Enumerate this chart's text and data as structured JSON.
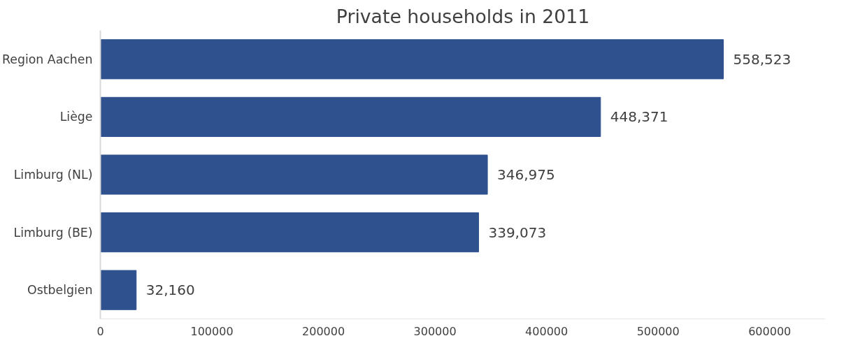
{
  "chart_data": {
    "type": "bar",
    "orientation": "horizontal",
    "title": "Private households in 2011",
    "categories": [
      "Region Aachen",
      "Liège",
      "Limburg (NL)",
      "Limburg (BE)",
      "Ostbelgien"
    ],
    "values": [
      558523,
      448371,
      346975,
      339073,
      32160
    ],
    "value_labels": [
      "558,523",
      "448,371",
      "346,975",
      "339,073",
      "32,160"
    ],
    "color": "#2f528f",
    "grid": false,
    "xlim": [
      0,
      650000
    ],
    "xticks": [
      0,
      100000,
      200000,
      300000,
      400000,
      500000,
      600000
    ]
  }
}
